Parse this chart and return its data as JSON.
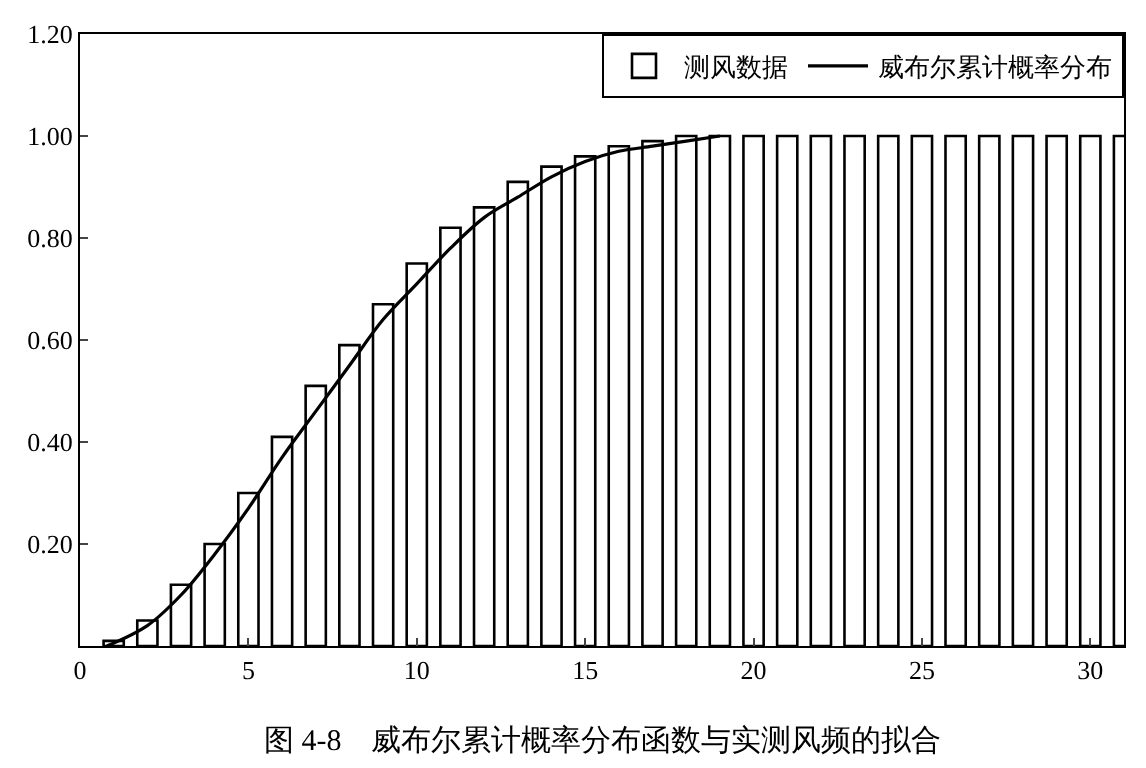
{
  "chart_data": {
    "type": "bar",
    "x": [
      1,
      2,
      3,
      4,
      5,
      6,
      7,
      8,
      9,
      10,
      11,
      12,
      13,
      14,
      15,
      16,
      17,
      18,
      19,
      20,
      21,
      22,
      23,
      24,
      25,
      26,
      27,
      28,
      29,
      30,
      31
    ],
    "series": [
      {
        "name": "测风数据",
        "color": "#ffffff",
        "values": [
          0.01,
          0.05,
          0.12,
          0.2,
          0.3,
          0.41,
          0.51,
          0.59,
          0.67,
          0.75,
          0.82,
          0.86,
          0.91,
          0.94,
          0.96,
          0.98,
          0.99,
          1.0,
          1.0,
          1.0,
          1.0,
          1.0,
          1.0,
          1.0,
          1.0,
          1.0,
          1.0,
          1.0,
          1.0,
          1.0,
          1.0
        ]
      },
      {
        "name": "威布尔累计概率分布",
        "type": "line",
        "color": "#000000",
        "x": [
          0.8,
          2,
          3,
          4,
          5,
          6,
          7,
          8,
          9,
          10,
          11,
          12,
          13,
          14,
          15,
          16,
          17,
          18,
          19
        ],
        "values": [
          0,
          0.04,
          0.1,
          0.18,
          0.27,
          0.37,
          0.46,
          0.55,
          0.64,
          0.71,
          0.78,
          0.84,
          0.88,
          0.92,
          0.95,
          0.97,
          0.98,
          0.99,
          1.0
        ]
      }
    ],
    "xlim": [
      0,
      31
    ],
    "xticks": [
      0,
      5,
      10,
      15,
      20,
      25,
      30
    ],
    "ylim": [
      0,
      1.2
    ],
    "yticks": [
      {
        "value": 0.2,
        "label": "0.20"
      },
      {
        "value": 0.4,
        "label": "0.40"
      },
      {
        "value": 0.6,
        "label": "0.60"
      },
      {
        "value": 0.8,
        "label": "0.80"
      },
      {
        "value": 1.0,
        "label": "1.00"
      },
      {
        "value": 1.2,
        "label": "1.20"
      }
    ],
    "legend": "top right",
    "marker": "none",
    "line_style": "solid",
    "annotations": [
      "图 4-8　威布尔累计概率分布函数与实测风频的拟合"
    ]
  }
}
